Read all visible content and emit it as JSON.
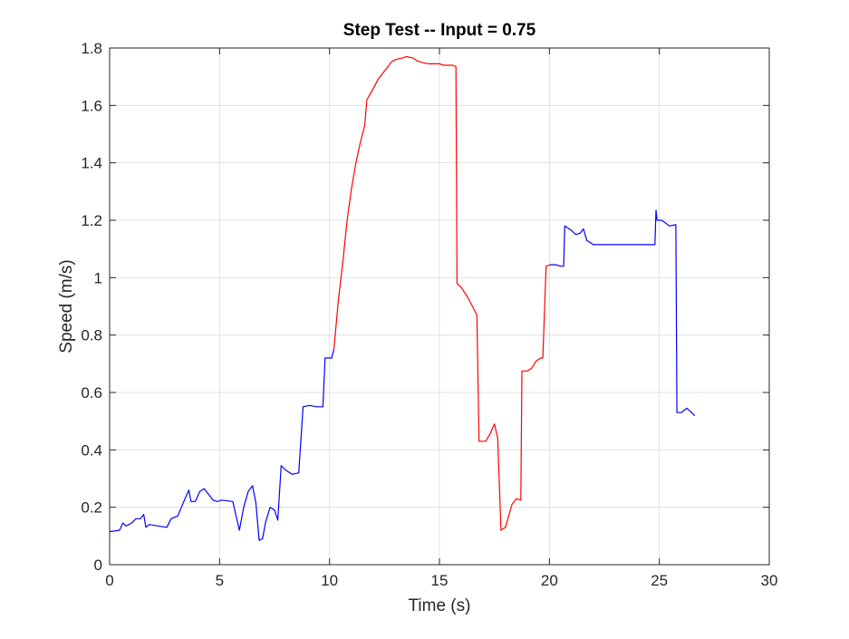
{
  "chart_data": {
    "type": "line",
    "title": "Step Test -- Input = 0.75",
    "xlabel": "Time (s)",
    "ylabel": "Speed (m/s)",
    "xlim": [
      0,
      30
    ],
    "ylim": [
      0,
      1.8
    ],
    "xticks": [
      0,
      5,
      10,
      15,
      20,
      25,
      30
    ],
    "yticks": [
      0,
      0.2,
      0.4,
      0.6,
      0.8,
      1,
      1.2,
      1.4,
      1.6,
      1.8
    ],
    "xtick_labels": [
      "0",
      "5",
      "10",
      "15",
      "20",
      "25",
      "30"
    ],
    "ytick_labels": [
      "0",
      "0.2",
      "0.4",
      "0.6",
      "0.8",
      "1",
      "1.2",
      "1.4",
      "1.6",
      "1.8"
    ],
    "grid": true,
    "legend": "none",
    "colors": {
      "blue": "#0000ff",
      "red": "#ff0000",
      "grid": "#e0e0e0",
      "axes": "#262626"
    },
    "segments": [
      {
        "color": "blue",
        "points": [
          [
            0.0,
            0.115
          ],
          [
            0.45,
            0.12
          ],
          [
            0.6,
            0.145
          ],
          [
            0.75,
            0.135
          ],
          [
            1.0,
            0.145
          ],
          [
            1.2,
            0.16
          ],
          [
            1.4,
            0.16
          ],
          [
            1.55,
            0.175
          ],
          [
            1.65,
            0.13
          ],
          [
            1.8,
            0.14
          ],
          [
            2.2,
            0.135
          ],
          [
            2.6,
            0.13
          ],
          [
            2.8,
            0.16
          ],
          [
            3.1,
            0.17
          ],
          [
            3.4,
            0.225
          ],
          [
            3.6,
            0.26
          ],
          [
            3.7,
            0.22
          ],
          [
            3.9,
            0.22
          ],
          [
            4.1,
            0.255
          ],
          [
            4.3,
            0.265
          ],
          [
            4.5,
            0.245
          ],
          [
            4.7,
            0.225
          ],
          [
            4.9,
            0.22
          ],
          [
            5.1,
            0.225
          ],
          [
            5.6,
            0.22
          ],
          [
            5.9,
            0.12
          ],
          [
            6.1,
            0.2
          ],
          [
            6.3,
            0.255
          ],
          [
            6.5,
            0.275
          ],
          [
            6.65,
            0.215
          ],
          [
            6.8,
            0.085
          ],
          [
            6.95,
            0.09
          ],
          [
            7.1,
            0.15
          ],
          [
            7.3,
            0.2
          ],
          [
            7.5,
            0.19
          ],
          [
            7.65,
            0.155
          ],
          [
            7.8,
            0.345
          ],
          [
            8.0,
            0.33
          ],
          [
            8.3,
            0.315
          ],
          [
            8.6,
            0.32
          ],
          [
            8.8,
            0.55
          ],
          [
            9.1,
            0.555
          ],
          [
            9.4,
            0.55
          ],
          [
            9.7,
            0.55
          ],
          [
            9.8,
            0.72
          ],
          [
            10.1,
            0.72
          ],
          [
            10.2,
            0.75
          ]
        ]
      },
      {
        "color": "red",
        "points": [
          [
            10.2,
            0.75
          ],
          [
            10.4,
            0.92
          ],
          [
            10.6,
            1.05
          ],
          [
            10.8,
            1.2
          ],
          [
            11.0,
            1.31
          ],
          [
            11.2,
            1.4
          ],
          [
            11.4,
            1.47
          ],
          [
            11.6,
            1.53
          ],
          [
            11.7,
            1.62
          ],
          [
            12.0,
            1.66
          ],
          [
            12.2,
            1.69
          ],
          [
            12.4,
            1.71
          ],
          [
            12.6,
            1.73
          ],
          [
            12.8,
            1.75
          ],
          [
            13.0,
            1.76
          ],
          [
            13.3,
            1.765
          ],
          [
            13.5,
            1.77
          ],
          [
            13.8,
            1.765
          ],
          [
            14.0,
            1.755
          ],
          [
            14.2,
            1.75
          ],
          [
            14.5,
            1.745
          ],
          [
            15.0,
            1.745
          ],
          [
            15.2,
            1.74
          ],
          [
            15.6,
            1.74
          ],
          [
            15.75,
            1.735
          ],
          [
            15.8,
            0.98
          ],
          [
            16.0,
            0.965
          ],
          [
            16.3,
            0.93
          ],
          [
            16.7,
            0.87
          ],
          [
            16.8,
            0.43
          ],
          [
            17.1,
            0.43
          ],
          [
            17.3,
            0.455
          ],
          [
            17.5,
            0.49
          ],
          [
            17.65,
            0.44
          ],
          [
            17.8,
            0.12
          ],
          [
            18.0,
            0.13
          ],
          [
            18.3,
            0.21
          ],
          [
            18.5,
            0.23
          ],
          [
            18.7,
            0.225
          ],
          [
            18.75,
            0.675
          ],
          [
            19.0,
            0.675
          ],
          [
            19.2,
            0.685
          ],
          [
            19.4,
            0.71
          ],
          [
            19.6,
            0.72
          ],
          [
            19.7,
            0.72
          ],
          [
            19.85,
            1.04
          ],
          [
            20.05,
            1.045
          ]
        ]
      },
      {
        "color": "blue",
        "points": [
          [
            20.05,
            1.045
          ],
          [
            20.3,
            1.045
          ],
          [
            20.5,
            1.04
          ],
          [
            20.65,
            1.04
          ],
          [
            20.7,
            1.18
          ],
          [
            21.0,
            1.165
          ],
          [
            21.2,
            1.15
          ],
          [
            21.4,
            1.155
          ],
          [
            21.55,
            1.17
          ],
          [
            21.7,
            1.13
          ],
          [
            22.0,
            1.115
          ],
          [
            23.0,
            1.115
          ],
          [
            24.0,
            1.115
          ],
          [
            24.8,
            1.115
          ],
          [
            24.85,
            1.235
          ],
          [
            24.9,
            1.2
          ],
          [
            25.1,
            1.2
          ],
          [
            25.3,
            1.19
          ],
          [
            25.45,
            1.18
          ],
          [
            25.75,
            1.185
          ],
          [
            25.8,
            0.53
          ],
          [
            26.0,
            0.53
          ],
          [
            26.25,
            0.545
          ],
          [
            26.4,
            0.535
          ],
          [
            26.6,
            0.52
          ]
        ]
      }
    ]
  }
}
